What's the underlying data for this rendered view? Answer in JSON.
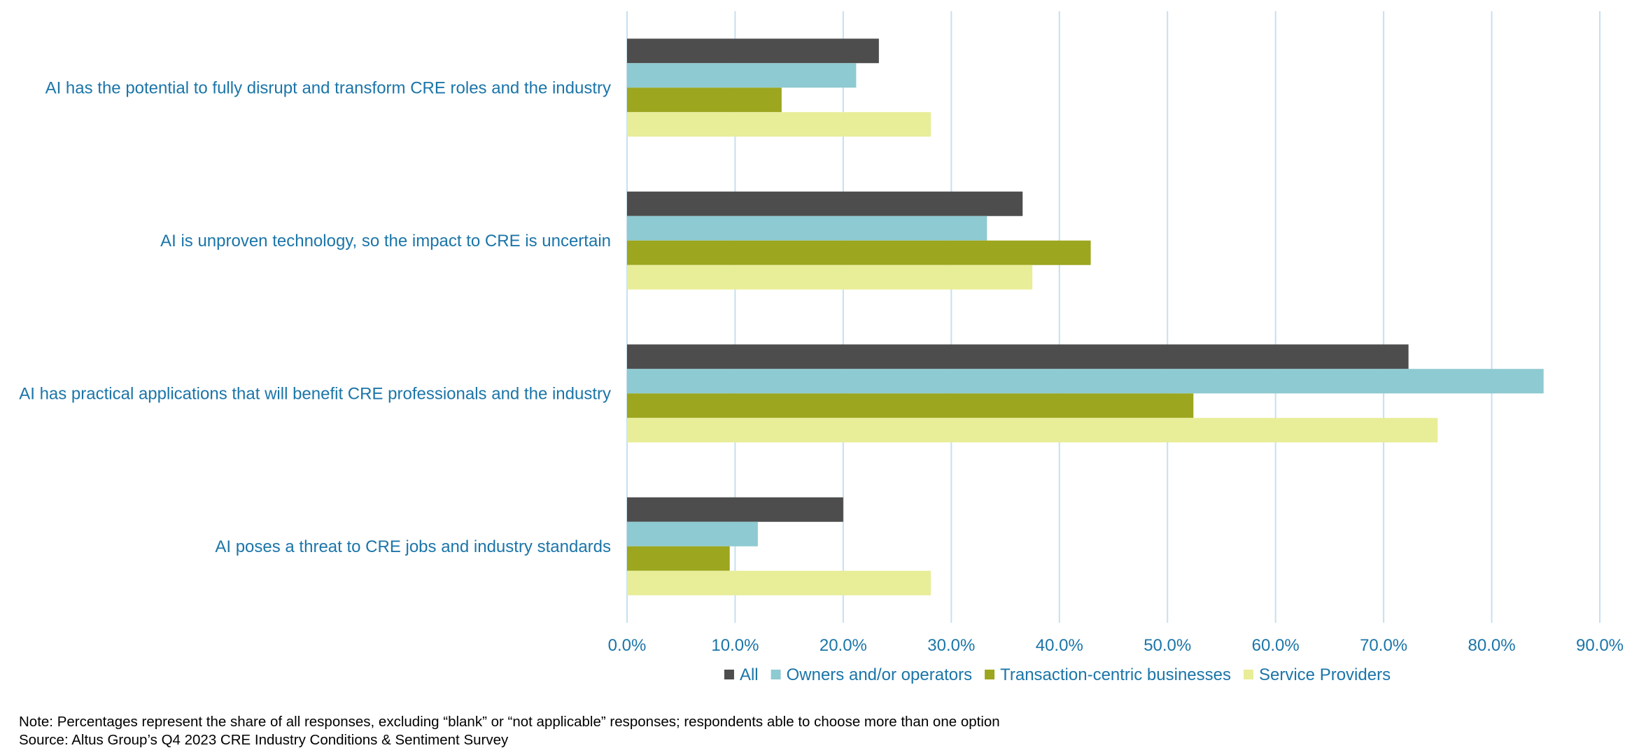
{
  "chart_data": {
    "type": "bar",
    "orientation": "horizontal",
    "categories": [
      "AI has the potential to fully disrupt and transform CRE roles and the industry",
      "AI is unproven technology, so the impact to CRE is uncertain",
      "AI has practical applications that will benefit CRE professionals and the industry",
      "AI poses a threat to CRE jobs and industry standards"
    ],
    "series": [
      {
        "name": "All",
        "color": "#4d4d4d",
        "values": [
          23.3,
          36.6,
          72.3,
          20.0
        ]
      },
      {
        "name": "Owners and/or operators",
        "color": "#8ecad1",
        "values": [
          21.2,
          33.3,
          84.8,
          12.1
        ]
      },
      {
        "name": "Transaction-centric businesses",
        "color": "#9ca61e",
        "values": [
          14.3,
          42.9,
          52.4,
          9.5
        ]
      },
      {
        "name": "Service Providers",
        "color": "#e8ed98",
        "values": [
          28.1,
          37.5,
          75.0,
          28.1
        ]
      }
    ],
    "xlim": [
      0,
      90
    ],
    "xticks": [
      "0.0%",
      "10.0%",
      "20.0%",
      "30.0%",
      "40.0%",
      "50.0%",
      "60.0%",
      "70.0%",
      "80.0%",
      "90.0%"
    ],
    "grid": true,
    "legend": "bottom",
    "gridline_color": "#c5e0f0",
    "text_color": "#1b75a8"
  },
  "footnotes": {
    "note": "Note: Percentages represent the share of all responses, excluding “blank” or “not applicable” responses; respondents able to choose more than one option",
    "source": "Source: Altus Group’s Q4 2023 CRE Industry Conditions & Sentiment Survey"
  }
}
